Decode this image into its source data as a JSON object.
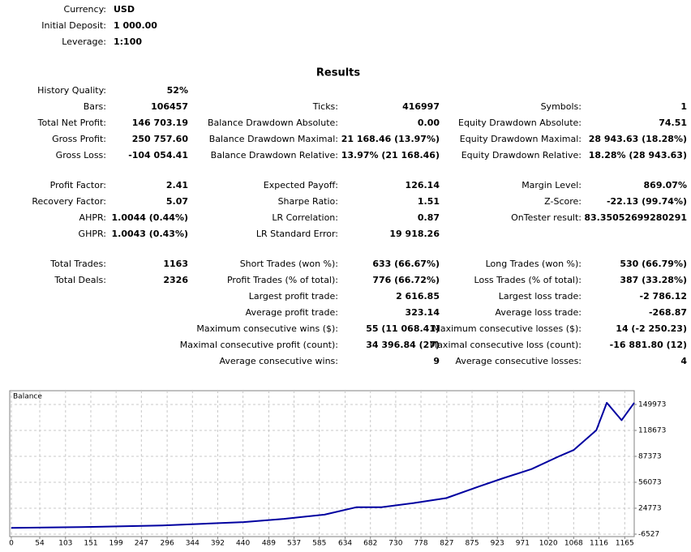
{
  "summary": [
    {
      "label": "Currency:",
      "value": "USD"
    },
    {
      "label": "Initial Deposit:",
      "value": "1 000.00"
    },
    {
      "label": "Leverage:",
      "value": "1:100"
    }
  ],
  "results": {
    "title": "Results",
    "groups": [
      [
        {
          "left": {
            "label": "History Quality:",
            "value": "52%"
          }
        },
        {
          "left": {
            "label": "Bars:",
            "value": "106457"
          },
          "middle": {
            "label": "Ticks:",
            "value": "416997"
          },
          "right": {
            "label": "Symbols:",
            "value": "1"
          }
        },
        {
          "left": {
            "label": "Total Net Profit:",
            "value": "146 703.19"
          },
          "middle": {
            "label": "Balance Drawdown Absolute:",
            "value": "0.00"
          },
          "right": {
            "label": "Equity Drawdown Absolute:",
            "value": "74.51"
          }
        },
        {
          "left": {
            "label": "Gross Profit:",
            "value": "250 757.60"
          },
          "middle": {
            "label": "Balance Drawdown Maximal:",
            "value": "21 168.46 (13.97%)"
          },
          "right": {
            "label": "Equity Drawdown Maximal:",
            "value": "28 943.63 (18.28%)"
          }
        },
        {
          "left": {
            "label": "Gross Loss:",
            "value": "-104 054.41"
          },
          "middle": {
            "label": "Balance Drawdown Relative:",
            "value": "13.97% (21 168.46)"
          },
          "right": {
            "label": "Equity Drawdown Relative:",
            "value": "18.28% (28 943.63)"
          }
        }
      ],
      [
        {
          "left": {
            "label": "Profit Factor:",
            "value": "2.41"
          },
          "middle": {
            "label": "Expected Payoff:",
            "value": "126.14"
          },
          "right": {
            "label": "Margin Level:",
            "value": "869.07%"
          }
        },
        {
          "left": {
            "label": "Recovery Factor:",
            "value": "5.07"
          },
          "middle": {
            "label": "Sharpe Ratio:",
            "value": "1.51"
          },
          "right": {
            "label": "Z-Score:",
            "value": "-22.13 (99.74%)"
          }
        },
        {
          "left": {
            "label": "AHPR:",
            "value": "1.0044 (0.44%)"
          },
          "middle": {
            "label": "LR Correlation:",
            "value": "0.87"
          },
          "right": {
            "label": "OnTester result:",
            "value": "83.35052699280291"
          }
        },
        {
          "left": {
            "label": "GHPR:",
            "value": "1.0043 (0.43%)"
          },
          "middle": {
            "label": "LR Standard Error:",
            "value": "19 918.26"
          }
        }
      ],
      [
        {
          "left": {
            "label": "Total Trades:",
            "value": "1163"
          },
          "middle": {
            "label": "Short Trades (won %):",
            "value": "633 (66.67%)"
          },
          "right": {
            "label": "Long Trades (won %):",
            "value": "530 (66.79%)"
          }
        },
        {
          "left": {
            "label": "Total Deals:",
            "value": "2326"
          },
          "middle": {
            "label": "Profit Trades (% of total):",
            "value": "776 (66.72%)"
          },
          "right": {
            "label": "Loss Trades (% of total):",
            "value": "387 (33.28%)"
          }
        },
        {
          "middle": {
            "label": "Largest profit trade:",
            "value": "2 616.85"
          },
          "right": {
            "label": "Largest loss trade:",
            "value": "-2 786.12"
          }
        },
        {
          "middle": {
            "label": "Average profit trade:",
            "value": "323.14"
          },
          "right": {
            "label": "Average loss trade:",
            "value": "-268.87"
          }
        },
        {
          "middle": {
            "label": "Maximum consecutive wins ($):",
            "value": "55 (11 068.41)"
          },
          "right": {
            "label": "Maximum consecutive losses ($):",
            "value": "14 (-2 250.23)"
          }
        },
        {
          "middle": {
            "label": "Maximal consecutive profit (count):",
            "value": "34 396.84 (27)"
          },
          "right": {
            "label": "Maximal consecutive loss (count):",
            "value": "-16 881.80 (12)"
          }
        },
        {
          "middle": {
            "label": "Average consecutive wins:",
            "value": "9"
          },
          "right": {
            "label": "Average consecutive losses:",
            "value": "4"
          }
        }
      ]
    ]
  },
  "chart_data": {
    "type": "line",
    "x": [
      0,
      133,
      287,
      441,
      518,
      595,
      656,
      703,
      764,
      826,
      888,
      934,
      988,
      1042,
      1068,
      1111,
      1131,
      1159,
      1183
    ],
    "series": [
      {
        "name": "Balance",
        "color": "#0000a0",
        "values": [
          1000,
          2000,
          4000,
          8000,
          12000,
          17000,
          26000,
          26000,
          31000,
          37000,
          51000,
          61000,
          72000,
          88000,
          95000,
          119000,
          152000,
          131000,
          152000
        ]
      }
    ],
    "xlim": [
      -3,
      1183
    ],
    "xticks": [
      0,
      54,
      103,
      151,
      199,
      247,
      296,
      344,
      392,
      440,
      489,
      537,
      585,
      634,
      682,
      730,
      778,
      827,
      875,
      923,
      971,
      1020,
      1068,
      1116,
      1165
    ],
    "ylim": [
      -9461,
      166601
    ],
    "yticks": [
      -6527,
      24773,
      56073,
      87373,
      118673,
      149973
    ],
    "grid": true
  }
}
